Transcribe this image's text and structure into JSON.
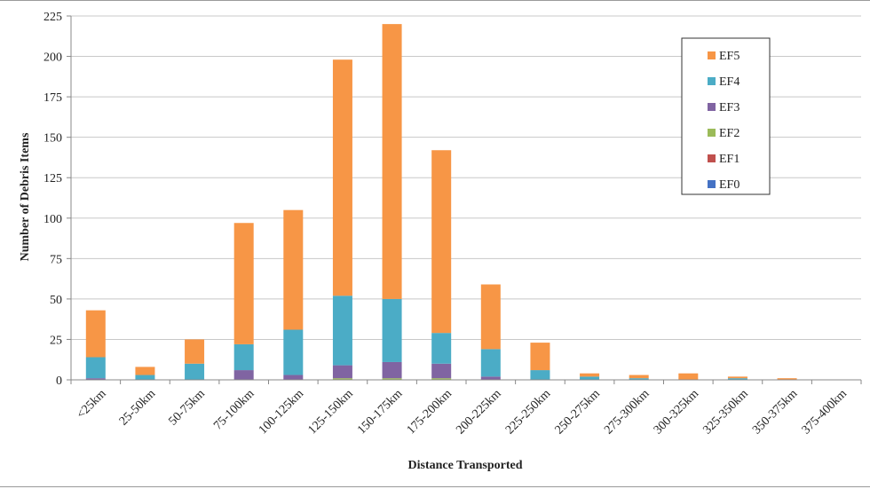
{
  "chart_data": {
    "type": "bar",
    "stacked": true,
    "xlabel": "Distance Transported",
    "ylabel": "Number of Debris Items",
    "ylim": [
      0,
      225
    ],
    "yticks": [
      0,
      25,
      50,
      75,
      100,
      125,
      150,
      175,
      200,
      225
    ],
    "grid": true,
    "legend_position": "top-right",
    "categories": [
      "<25km",
      "25-50km",
      "50-75km",
      "75-100km",
      "100-125km",
      "125-150km",
      "150-175km",
      "175-200km",
      "200-225km",
      "225-250km",
      "250-275km",
      "275-300km",
      "300-325km",
      "325-350km",
      "350-375km",
      "375-400km"
    ],
    "series": [
      {
        "name": "EF0",
        "color": "#4472c4",
        "values": [
          0,
          0,
          0,
          0,
          0,
          0,
          0,
          0,
          0,
          0,
          0,
          0,
          0,
          0,
          0,
          0
        ]
      },
      {
        "name": "EF1",
        "color": "#c0504d",
        "values": [
          0,
          0,
          0,
          0,
          0,
          0,
          0,
          0,
          0,
          0,
          0,
          0,
          0,
          0,
          0,
          0
        ]
      },
      {
        "name": "EF2",
        "color": "#9bbb59",
        "values": [
          0,
          0,
          0,
          0,
          0,
          1,
          1,
          1,
          0,
          0,
          0,
          0,
          0,
          0,
          0,
          0
        ]
      },
      {
        "name": "EF3",
        "color": "#8064a2",
        "values": [
          1,
          0,
          0,
          6,
          3,
          8,
          10,
          9,
          2,
          0,
          0,
          0,
          0,
          0,
          0,
          0
        ]
      },
      {
        "name": "EF4",
        "color": "#4bacc6",
        "values": [
          13,
          3,
          10,
          16,
          28,
          43,
          39,
          19,
          17,
          6,
          2,
          1,
          0,
          1,
          0,
          0
        ]
      },
      {
        "name": "EF5",
        "color": "#f79646",
        "values": [
          29,
          5,
          15,
          75,
          74,
          146,
          170,
          113,
          40,
          17,
          2,
          2,
          4,
          1,
          1,
          0
        ]
      }
    ]
  }
}
